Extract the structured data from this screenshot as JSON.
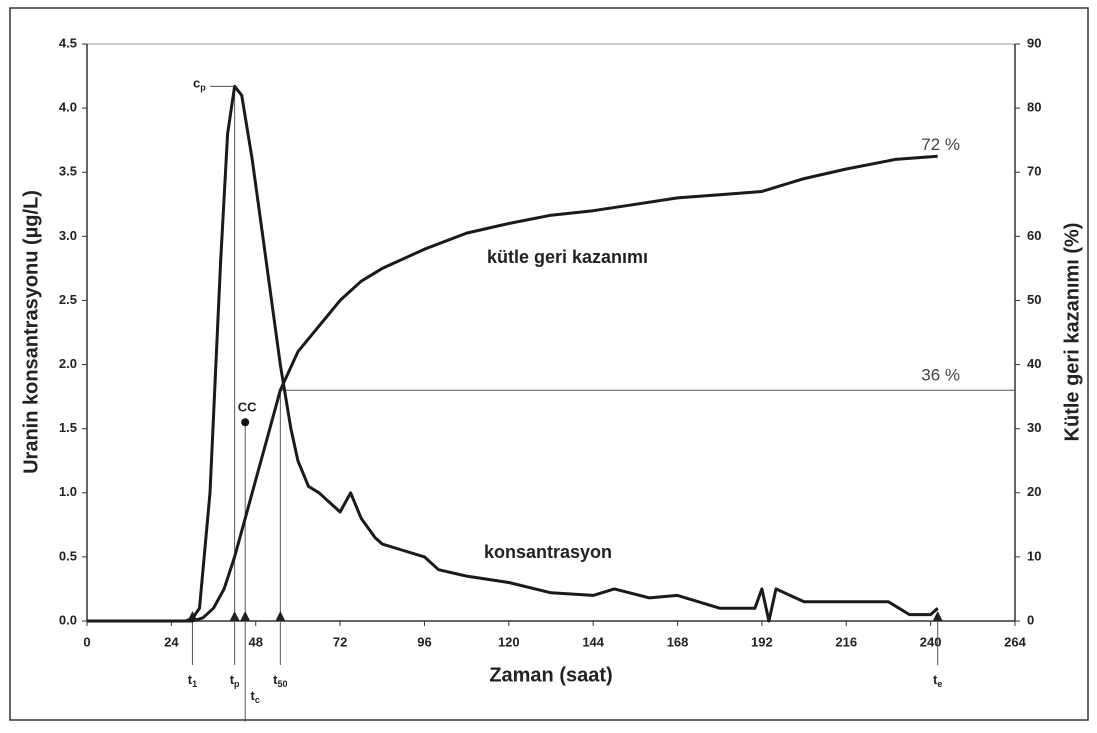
{
  "chart_data": {
    "type": "line",
    "xlabel": "Zaman (saat)",
    "ylabel": "Uranin konsantrasyonu (µg/L)",
    "y2label": "Kütle geri kazanımı (%)",
    "xlim": [
      0,
      264
    ],
    "xticks": [
      0,
      24,
      48,
      72,
      96,
      120,
      144,
      168,
      192,
      216,
      240,
      264
    ],
    "ylim": [
      0,
      4.5
    ],
    "yticks": [
      {
        "value": 0,
        "label": "0.0"
      },
      {
        "value": 0.5,
        "label": "0.5"
      },
      {
        "value": 1,
        "label": "1.0"
      },
      {
        "value": 1.5,
        "label": "1.5"
      },
      {
        "value": 2,
        "label": "2.0"
      },
      {
        "value": 2.5,
        "label": "2.5"
      },
      {
        "value": 3,
        "label": "3.0"
      },
      {
        "value": 3.5,
        "label": "3.5"
      },
      {
        "value": 4,
        "label": "4.0"
      },
      {
        "value": 4.5,
        "label": "4.5"
      }
    ],
    "y2lim": [
      0,
      90
    ],
    "y2ticks": [
      0,
      10,
      20,
      30,
      40,
      50,
      60,
      70,
      80,
      90
    ],
    "series": [
      {
        "name": "konsantrasyon",
        "color": "#1a1a1a",
        "x": [
          0,
          28,
          30,
          32,
          35,
          38,
          40,
          42,
          44,
          47,
          50,
          53,
          55,
          58,
          60,
          63,
          66,
          70,
          72,
          75,
          78,
          82,
          84,
          90,
          96,
          100,
          108,
          120,
          132,
          144,
          150,
          160,
          168,
          180,
          190,
          192,
          194,
          196,
          200,
          204,
          216,
          228,
          234,
          240,
          242
        ],
        "values": [
          0,
          0,
          0.02,
          0.1,
          1.0,
          2.8,
          3.8,
          4.17,
          4.1,
          3.6,
          3.0,
          2.4,
          2.0,
          1.5,
          1.25,
          1.05,
          1.0,
          0.9,
          0.85,
          1.0,
          0.8,
          0.65,
          0.6,
          0.55,
          0.5,
          0.4,
          0.35,
          0.3,
          0.22,
          0.2,
          0.25,
          0.18,
          0.2,
          0.1,
          0.1,
          0.25,
          0.0,
          0.25,
          0.2,
          0.15,
          0.15,
          0.15,
          0.05,
          0.05,
          0.1
        ]
      },
      {
        "name": "kütle geri kazanımı",
        "color": "#1a1a1a",
        "axis": "y2",
        "x": [
          0,
          30,
          33,
          36,
          39,
          42,
          45,
          48,
          51,
          55,
          60,
          66,
          72,
          78,
          84,
          96,
          108,
          120,
          132,
          144,
          156,
          168,
          180,
          192,
          204,
          216,
          230,
          242
        ],
        "values": [
          0,
          0,
          0.5,
          2,
          5,
          10,
          16,
          22,
          28,
          36,
          42,
          46,
          50,
          53,
          55,
          58,
          60.5,
          62,
          63.3,
          64,
          65,
          66,
          66.5,
          67,
          69,
          70.5,
          72,
          72.5
        ]
      }
    ],
    "annotations": {
      "peak": {
        "text": "c",
        "sub": "p",
        "x": 42,
        "y": 4.17
      },
      "centroid": {
        "text": "CC",
        "x": 45,
        "y": 1.55
      },
      "recovery_end": {
        "text": "72 %",
        "y2": 72
      },
      "recovery_half": {
        "text": "36 %",
        "y2": 36,
        "y": 1.8
      },
      "times": [
        {
          "text": "t",
          "sub": "1",
          "x": 30
        },
        {
          "text": "t",
          "sub": "p",
          "x": 42
        },
        {
          "text": "t",
          "sub": "c",
          "x": 45
        },
        {
          "text": "t",
          "sub": "50",
          "x": 55
        },
        {
          "text": "t",
          "sub": "e",
          "x": 242
        }
      ]
    }
  }
}
